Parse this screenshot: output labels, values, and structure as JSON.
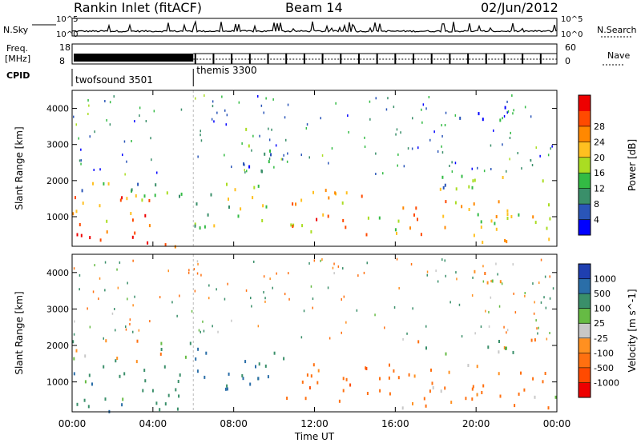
{
  "header": {
    "title": "Rankin Inlet (fitACF)",
    "beam": "Beam 14",
    "date": "02/Jun/2012"
  },
  "params_panel": {
    "nsky_label": "N.Sky",
    "nsearch_label": "N.Search",
    "noise_ticks_left": [
      "10^5",
      "10^0"
    ],
    "noise_ticks_right": [
      "10^5",
      "10^0"
    ],
    "freq_label": "Freq.",
    "freq_unit": "[MHz]",
    "freq_ticks": [
      "18",
      "8"
    ],
    "nave_label": "Nave",
    "nave_ticks": [
      "60",
      "0"
    ],
    "cpid_label": "CPID",
    "cpid_segments": [
      {
        "label": "twofsound 3501",
        "start_hour": 0,
        "end_hour": 6
      },
      {
        "label": "themis 3300",
        "start_hour": 6,
        "end_hour": 24
      }
    ]
  },
  "chart_data": [
    {
      "type": "heatmap",
      "title": "",
      "xlabel": "",
      "ylabel": "Slant Range [km]",
      "xlim": [
        0,
        24
      ],
      "ylim": [
        180,
        4500
      ],
      "x_tick_labels": [
        "00:00",
        "04:00",
        "08:00",
        "12:00",
        "16:00",
        "20:00",
        "00:00"
      ],
      "y_ticks": [
        1000,
        2000,
        3000,
        4000
      ],
      "colorbar": {
        "label": "Power [dB]",
        "ticks": [
          "4",
          "8",
          "12",
          "16",
          "20",
          "24",
          "28"
        ],
        "colors": [
          "#0000ff",
          "#2a55b8",
          "#3a8f6a",
          "#33bb44",
          "#aadd22",
          "#ffc020",
          "#ff8800",
          "#ff4a00",
          "#ee0000"
        ]
      },
      "regions": [
        {
          "t": [
            0.0,
            4.0
          ],
          "r": [
            200,
            700
          ],
          "level": 8
        },
        {
          "t": [
            0.0,
            4.5
          ],
          "r": [
            700,
            1600
          ],
          "level": 6
        },
        {
          "t": [
            4.0,
            5.5
          ],
          "r": [
            200,
            600
          ],
          "level": 7
        },
        {
          "t": [
            0.0,
            6.0
          ],
          "r": [
            1600,
            2200
          ],
          "level": 3
        },
        {
          "t": [
            6.0,
            10.0
          ],
          "r": [
            700,
            2000
          ],
          "level": 4
        },
        {
          "t": [
            10.0,
            14.5
          ],
          "r": [
            600,
            1800
          ],
          "level": 6
        },
        {
          "t": [
            14.5,
            17.0
          ],
          "r": [
            500,
            1500
          ],
          "level": 5
        },
        {
          "t": [
            17.0,
            24.0
          ],
          "r": [
            300,
            1500
          ],
          "level": 5
        },
        {
          "t": [
            16.5,
            24.0
          ],
          "r": [
            1800,
            2200
          ],
          "level": 3
        },
        {
          "t": [
            19.0,
            21.5
          ],
          "r": [
            3700,
            4200
          ],
          "level": 1
        },
        {
          "t": [
            8.0,
            10.0
          ],
          "r": [
            2200,
            3500
          ],
          "level": 2
        }
      ]
    },
    {
      "type": "heatmap",
      "title": "",
      "xlabel": "Time UT",
      "ylabel": "Slant Range [km]",
      "xlim": [
        0,
        24
      ],
      "ylim": [
        180,
        4500
      ],
      "x_tick_labels": [
        "00:00",
        "04:00",
        "08:00",
        "12:00",
        "16:00",
        "20:00",
        "00:00"
      ],
      "y_ticks": [
        1000,
        2000,
        3000,
        4000
      ],
      "colorbar": {
        "label": "Velocity [m s^-1]",
        "ticks": [
          "1000",
          "500",
          "100",
          "25",
          "-25",
          "-100",
          "-500",
          "-1000"
        ],
        "colors": [
          "#1f3fb0",
          "#2a6ea8",
          "#3a8f6a",
          "#66bb44",
          "#c8c8c8",
          "#ff9020",
          "#ff7010",
          "#ff4a00",
          "#ee0000"
        ]
      },
      "regions": [
        {
          "t": [
            0.0,
            5.5
          ],
          "r": [
            200,
            1500
          ],
          "v": 300
        },
        {
          "t": [
            0.0,
            6.0
          ],
          "r": [
            1600,
            2200
          ],
          "v": 0
        },
        {
          "t": [
            6.0,
            10.5
          ],
          "r": [
            800,
            2000
          ],
          "v": 600
        },
        {
          "t": [
            10.5,
            16.0
          ],
          "r": [
            500,
            1600
          ],
          "v": -300
        },
        {
          "t": [
            16.0,
            24.0
          ],
          "r": [
            300,
            1500
          ],
          "v": -200
        },
        {
          "t": [
            16.5,
            24.0
          ],
          "r": [
            1800,
            2200
          ],
          "v": 0
        },
        {
          "t": [
            19.0,
            21.5
          ],
          "r": [
            3700,
            4200
          ],
          "v": -100
        }
      ]
    }
  ]
}
